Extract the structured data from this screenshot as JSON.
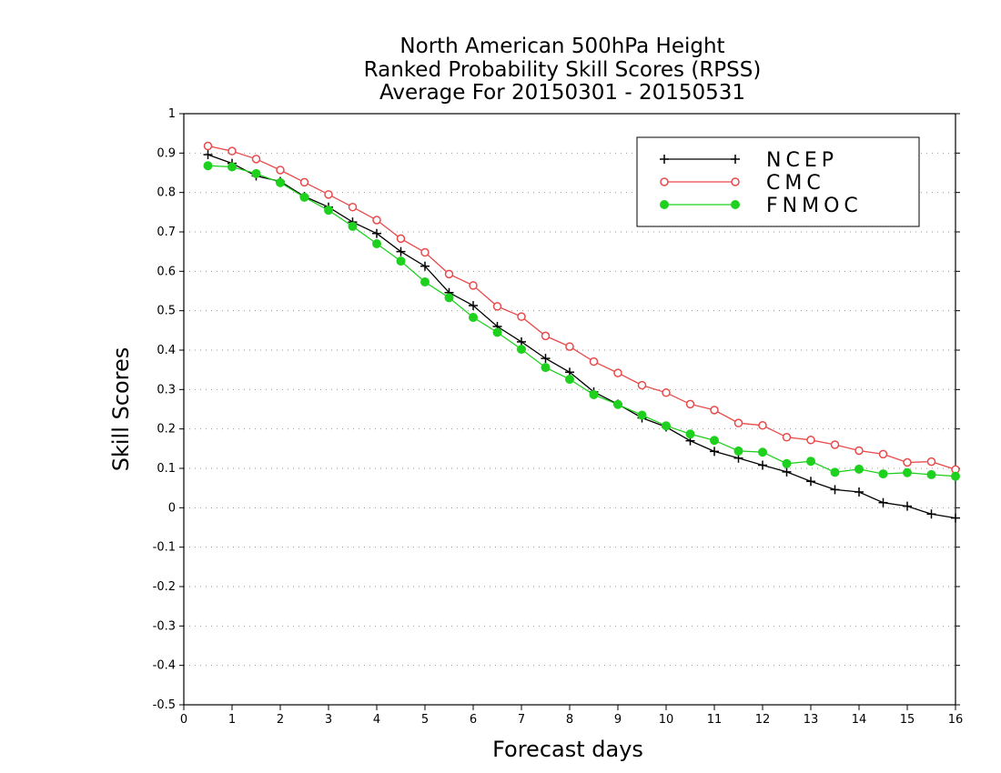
{
  "chart_data": {
    "type": "line",
    "title_lines": [
      "North American 500hPa Height",
      "Ranked Probability Skill Scores (RPSS)",
      "Average For 20150301 - 20150531"
    ],
    "xlabel": "Forecast days",
    "ylabel": "Skill Scores",
    "xlim": [
      0,
      16
    ],
    "ylim": [
      -0.5,
      1
    ],
    "xticks": [
      "0",
      "1",
      "2",
      "3",
      "4",
      "5",
      "6",
      "7",
      "8",
      "9",
      "10",
      "11",
      "12",
      "13",
      "14",
      "15",
      "16"
    ],
    "yticks": [
      "1",
      "0.9",
      "0.8",
      "0.7",
      "0.6",
      "0.5",
      "0.4",
      "0.3",
      "0.2",
      "0.1",
      "0",
      "-0.1",
      "-0.2",
      "-0.3",
      "-0.4",
      "-0.5"
    ],
    "grid": true,
    "legend_position": "top-right",
    "x": [
      0.5,
      1,
      1.5,
      2,
      2.5,
      3,
      3.5,
      4,
      4.5,
      5,
      5.5,
      6,
      6.5,
      7,
      7.5,
      8,
      8.5,
      9,
      9.5,
      10,
      10.5,
      11,
      11.5,
      12,
      12.5,
      13,
      13.5,
      14,
      14.5,
      15,
      15.5,
      16
    ],
    "series": [
      {
        "name": "NCEP",
        "color": "#000000",
        "marker": "plus",
        "values": [
          0.896,
          0.874,
          0.842,
          0.828,
          0.79,
          0.763,
          0.725,
          0.696,
          0.65,
          0.613,
          0.546,
          0.513,
          0.46,
          0.421,
          0.379,
          0.344,
          0.294,
          0.263,
          0.228,
          0.205,
          0.17,
          0.143,
          0.126,
          0.108,
          0.091,
          0.067,
          0.046,
          0.04,
          0.013,
          0.004,
          -0.016,
          -0.026
        ]
      },
      {
        "name": "CMC",
        "color": "#e84a4a",
        "marker": "open-circle",
        "values": [
          0.918,
          0.905,
          0.885,
          0.857,
          0.826,
          0.795,
          0.763,
          0.73,
          0.683,
          0.648,
          0.593,
          0.564,
          0.511,
          0.485,
          0.436,
          0.409,
          0.371,
          0.342,
          0.311,
          0.292,
          0.263,
          0.248,
          0.215,
          0.209,
          0.179,
          0.172,
          0.16,
          0.145,
          0.136,
          0.115,
          0.117,
          0.097
        ]
      },
      {
        "name": "FNMOC",
        "color": "#1fd11f",
        "marker": "filled-circle",
        "values": [
          0.868,
          0.865,
          0.848,
          0.825,
          0.788,
          0.755,
          0.714,
          0.67,
          0.626,
          0.573,
          0.533,
          0.483,
          0.445,
          0.402,
          0.356,
          0.326,
          0.287,
          0.262,
          0.235,
          0.208,
          0.187,
          0.171,
          0.144,
          0.141,
          0.112,
          0.118,
          0.09,
          0.098,
          0.086,
          0.089,
          0.084,
          0.08
        ]
      }
    ]
  }
}
